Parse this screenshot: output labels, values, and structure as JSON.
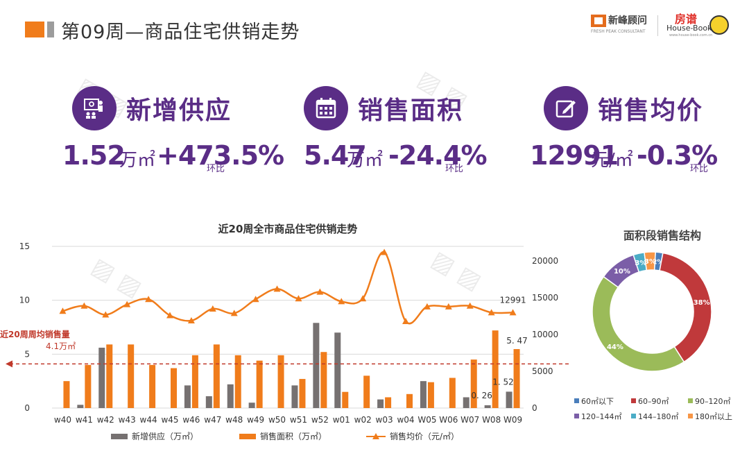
{
  "header": {
    "title": "第09周—商品住宅供销走势",
    "logo1_name": "新峰顾问",
    "logo1_sub": "FRESH PEAK CONSULTANT",
    "logo2_name": "房谱",
    "logo2_name2": "House-Book",
    "logo2_sub": "www.house-book.com.cn"
  },
  "kpis": [
    {
      "icon": "supply-icon",
      "label": "新增供应",
      "value": "1.52",
      "unit": "万㎡",
      "change": "+473.5%",
      "suffix": "环比"
    },
    {
      "icon": "calendar-icon",
      "label": "销售面积",
      "value": "5.47",
      "unit": "万㎡",
      "change": "-24.4%",
      "suffix": "环比"
    },
    {
      "icon": "edit-icon",
      "label": "销售均价",
      "value": "12991",
      "unit": "元/㎡",
      "change": "-0.3%",
      "suffix": "环比"
    }
  ],
  "avg_annotation": {
    "label": "近20周周均销售量",
    "value": "4.1万㎡",
    "number": 4.1
  },
  "colors": {
    "purple": "#5a2d86",
    "orange": "#f07c1b",
    "gray": "#767171",
    "red_dash": "#c0392b"
  },
  "chart_data": [
    {
      "type": "bar",
      "title": "近20周全市商品住宅供销走势",
      "categories": [
        "w40",
        "w41",
        "w42",
        "w43",
        "w44",
        "w45",
        "w46",
        "w47",
        "w48",
        "w49",
        "w50",
        "w51",
        "w52",
        "w01",
        "w02",
        "w03",
        "w04",
        "W05",
        "W06",
        "W07",
        "W08",
        "W09"
      ],
      "y_left": {
        "ticks": [
          0,
          5,
          10,
          15
        ],
        "ylim": [
          0,
          15
        ]
      },
      "y_right": {
        "ticks": [
          0,
          5000,
          10000,
          15000,
          20000
        ],
        "ylim": [
          0,
          22000
        ]
      },
      "series": [
        {
          "name": "新增供应（万㎡）",
          "type": "bar",
          "axis": "left",
          "color": "#767171",
          "values": [
            0,
            0.3,
            5.6,
            0,
            0,
            0,
            2.1,
            1.1,
            2.2,
            0.5,
            0,
            2.1,
            7.9,
            7.0,
            0,
            0.8,
            0,
            2.5,
            0,
            1.0,
            0.26,
            1.52
          ]
        },
        {
          "name": "销售面积（万㎡）",
          "type": "bar",
          "axis": "left",
          "color": "#f07c1b",
          "values": [
            2.5,
            4.0,
            5.9,
            5.9,
            4.0,
            3.7,
            4.9,
            5.9,
            4.9,
            4.4,
            4.9,
            2.7,
            5.2,
            1.5,
            3.0,
            1.0,
            1.3,
            2.4,
            2.8,
            4.5,
            7.2,
            5.47
          ]
        },
        {
          "name": "销售均价（元/㎡）",
          "type": "line",
          "axis": "right",
          "color": "#f07c1b",
          "values": [
            13200,
            13900,
            12700,
            14100,
            14800,
            12600,
            11900,
            13500,
            12900,
            14800,
            16200,
            14900,
            15800,
            14500,
            14900,
            21200,
            11800,
            13800,
            13800,
            13900,
            13000,
            12991
          ]
        }
      ],
      "data_labels": [
        {
          "series": 2,
          "index": 21,
          "text": "12991"
        },
        {
          "series": 1,
          "index": 21,
          "text": "5. 47"
        },
        {
          "series": 0,
          "index": 20,
          "text": "0. 26"
        },
        {
          "series": 0,
          "index": 21,
          "text": "1. 52"
        }
      ],
      "legend_position": "bottom"
    },
    {
      "type": "pie",
      "donut": true,
      "title": "面积段销售结构",
      "slices": [
        {
          "label": "60㎡以下",
          "value": 2,
          "text": "2%",
          "color": "#4a7ebb"
        },
        {
          "label": "60–90㎡",
          "value": 38,
          "text": "38%",
          "color": "#c0393b"
        },
        {
          "label": "90–120㎡",
          "value": 44,
          "text": "44%",
          "color": "#9bbb59"
        },
        {
          "label": "120–144㎡",
          "value": 10,
          "text": "10%",
          "color": "#7b5ea7"
        },
        {
          "label": "144–180㎡",
          "value": 3,
          "text": "3%",
          "color": "#4bacc6"
        },
        {
          "label": "180㎡以上",
          "value": 3,
          "text": "3%",
          "color": "#f79646"
        }
      ],
      "legend_position": "bottom"
    }
  ]
}
